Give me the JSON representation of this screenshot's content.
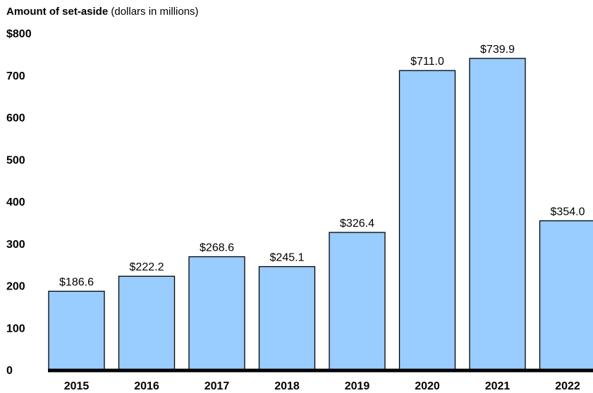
{
  "chart_data": {
    "type": "bar",
    "title": "Amount of set-aside",
    "subtitle": "(dollars in millions)",
    "categories": [
      "2015",
      "2016",
      "2017",
      "2018",
      "2019",
      "2020",
      "2021",
      "2022"
    ],
    "values": [
      186.6,
      222.2,
      268.6,
      245.1,
      326.4,
      711.0,
      739.9,
      354.0
    ],
    "value_labels": [
      "$186.6",
      "$222.2",
      "$268.6",
      "$245.1",
      "$326.4",
      "$711.0",
      "$739.9",
      "$354.0"
    ],
    "ylim": [
      0,
      800
    ],
    "yticks": [
      0,
      100,
      200,
      300,
      400,
      500,
      600,
      700,
      800
    ],
    "ytick_labels": [
      "0",
      "100",
      "200",
      "300",
      "400",
      "500",
      "600",
      "700",
      "$800"
    ],
    "xlabel": "",
    "ylabel": "",
    "grid": false,
    "bar_color": "#99ccff",
    "bar_edge_color": "#000000",
    "axis_color": "#000000"
  }
}
